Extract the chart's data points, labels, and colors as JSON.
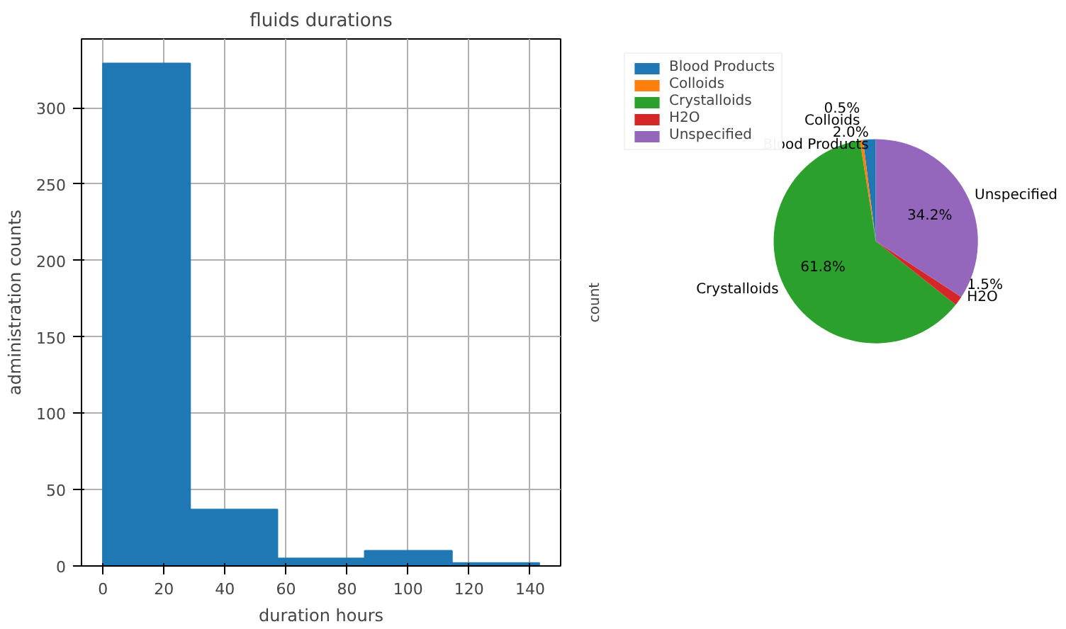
{
  "chart_data": [
    {
      "type": "histogram",
      "title": "fluids durations",
      "xlabel": "duration hours",
      "ylabel": "administration counts",
      "bins": [
        0,
        28.6,
        57.2,
        85.8,
        114.4,
        143
      ],
      "values": [
        329,
        37,
        5,
        10,
        2
      ],
      "color": "#1f77b4",
      "xlim": [
        -7,
        150
      ],
      "ylim": [
        0,
        345
      ],
      "xticks": [
        0,
        20,
        40,
        60,
        80,
        100,
        120,
        140
      ],
      "yticks": [
        0,
        50,
        100,
        150,
        200,
        250,
        300
      ],
      "grid": true
    },
    {
      "type": "pie",
      "ylabel": "count",
      "categories": [
        "Blood Products",
        "Colloids",
        "Crystalloids",
        "H2O",
        "Unspecified"
      ],
      "values": [
        2.0,
        0.5,
        61.8,
        1.5,
        34.2
      ],
      "colors": [
        "#1f77b4",
        "#ff7f0e",
        "#2ca02c",
        "#d62728",
        "#9467bd"
      ],
      "value_labels": [
        "2.0%",
        "0.5%",
        "61.8%",
        "1.5%",
        "34.2%"
      ],
      "legend": "top left"
    }
  ]
}
